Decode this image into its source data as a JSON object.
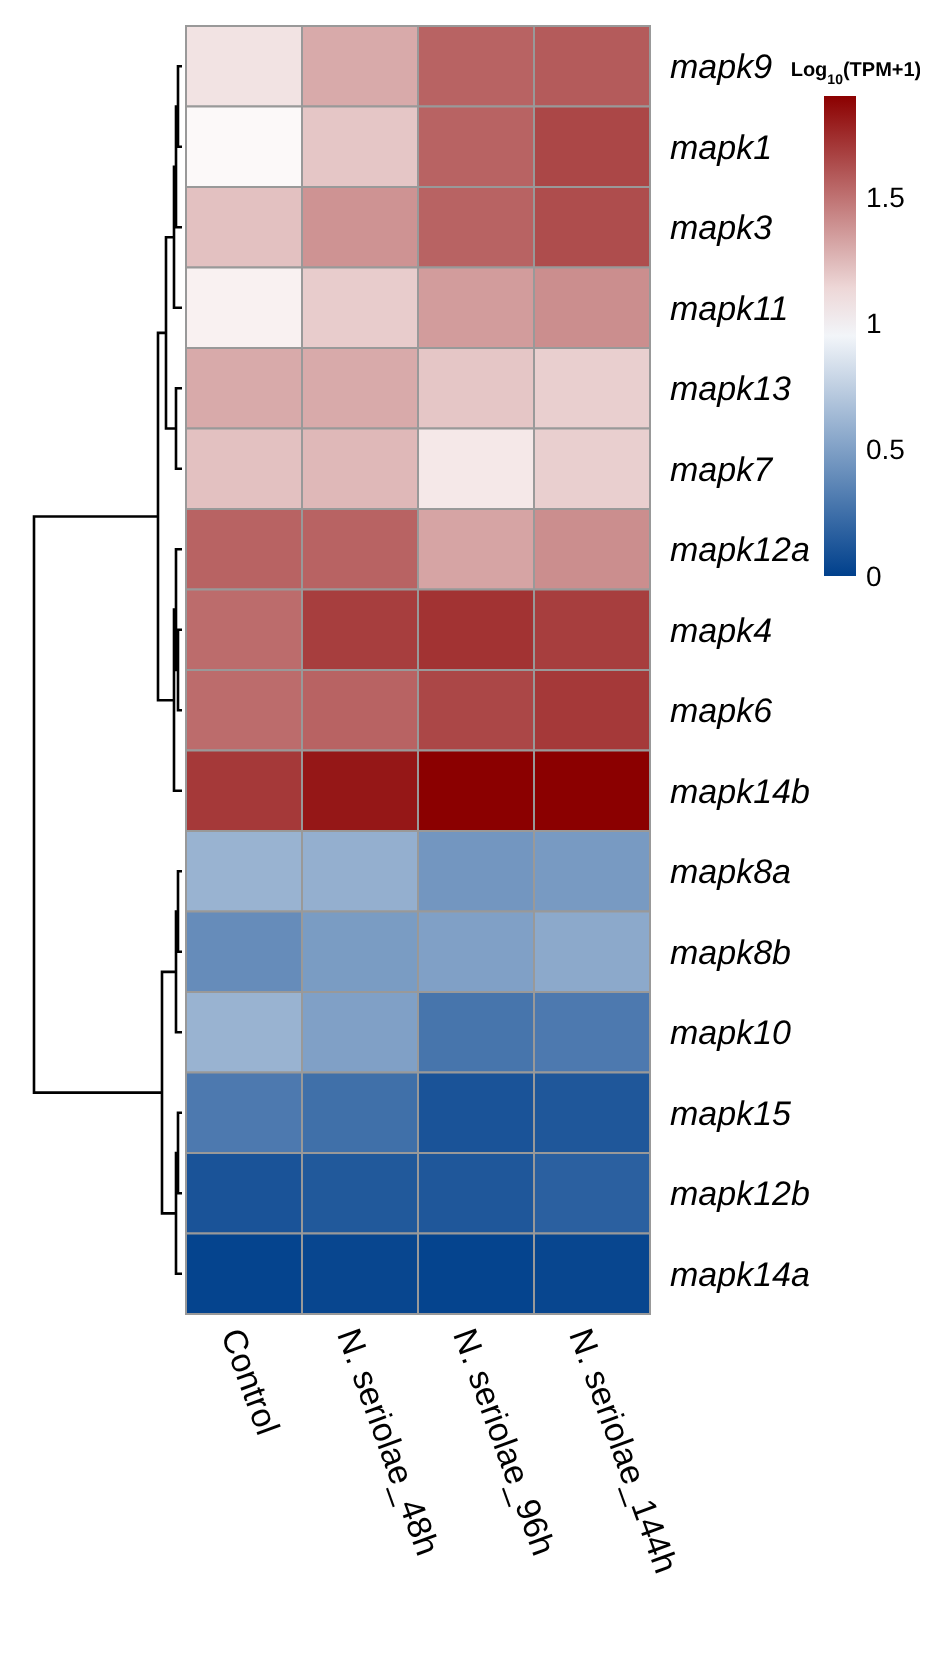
{
  "chart_data": {
    "type": "heatmap",
    "clabel": "Log$_{10}$(TPM+1)",
    "categories": [
      "Control",
      "N. seriolae_48h",
      "N. seriolae_96h",
      "N. seriolae_144h"
    ],
    "y_categories": [
      "mapk9",
      "mapk1",
      "mapk3",
      "mapk11",
      "mapk13",
      "mapk7",
      "mapk12a",
      "mapk4",
      "mapk6",
      "mapk14b",
      "mapk8a",
      "mapk8b",
      "mapk10",
      "mapk15",
      "mapk12b",
      "mapk14a"
    ],
    "cells": [
      [
        1.1,
        1.3,
        1.55,
        1.58
      ],
      [
        1.02,
        1.2,
        1.55,
        1.65
      ],
      [
        1.22,
        1.38,
        1.55,
        1.63
      ],
      [
        1.05,
        1.18,
        1.35,
        1.4
      ],
      [
        1.3,
        1.3,
        1.2,
        1.17
      ],
      [
        1.22,
        1.25,
        1.08,
        1.17
      ],
      [
        1.55,
        1.55,
        1.32,
        1.4
      ],
      [
        1.52,
        1.68,
        1.72,
        1.68
      ],
      [
        1.52,
        1.55,
        1.65,
        1.7
      ],
      [
        1.7,
        1.82,
        1.9,
        1.9
      ],
      [
        0.6,
        0.58,
        0.45,
        0.47
      ],
      [
        0.4,
        0.48,
        0.5,
        0.55
      ],
      [
        0.6,
        0.5,
        0.28,
        0.3
      ],
      [
        0.3,
        0.25,
        0.1,
        0.12
      ],
      [
        0.1,
        0.13,
        0.12,
        0.17
      ],
      [
        0.02,
        0.03,
        0.02,
        0.03
      ]
    ],
    "clim": [
      0,
      1.9
    ],
    "cticks": [
      0,
      0.5,
      1,
      1.5
    ]
  }
}
